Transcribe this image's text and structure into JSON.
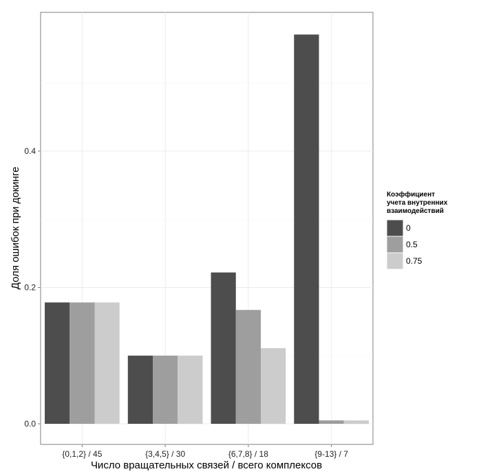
{
  "chart_data": {
    "type": "bar",
    "categories": [
      "{0,1,2} / 45",
      "{3,4,5} / 30",
      "{6,7,8} / 18",
      "{9-13} / 7"
    ],
    "series": [
      {
        "name": "0",
        "color": "#4d4d4d",
        "values": [
          0.178,
          0.1,
          0.222,
          0.571
        ]
      },
      {
        "name": "0.5",
        "color": "#9e9e9e",
        "values": [
          0.178,
          0.1,
          0.167,
          0.005
        ]
      },
      {
        "name": "0.75",
        "color": "#cccccc",
        "values": [
          0.178,
          0.1,
          0.111,
          0.005
        ]
      }
    ],
    "xlabel": "Число вращательных связей / всего комплексов",
    "ylabel": "Доля ошибок при докинге",
    "ylim": [
      -0.035,
      0.6
    ],
    "yticks": [
      0.0,
      0.2,
      0.4
    ],
    "ytick_labels": [
      "0.0",
      "0.2",
      "0.4"
    ],
    "legend": {
      "title_lines": [
        "Коэффициент",
        "учета внутренних",
        "взаимодействий"
      ],
      "position": "right"
    },
    "grid": true
  }
}
